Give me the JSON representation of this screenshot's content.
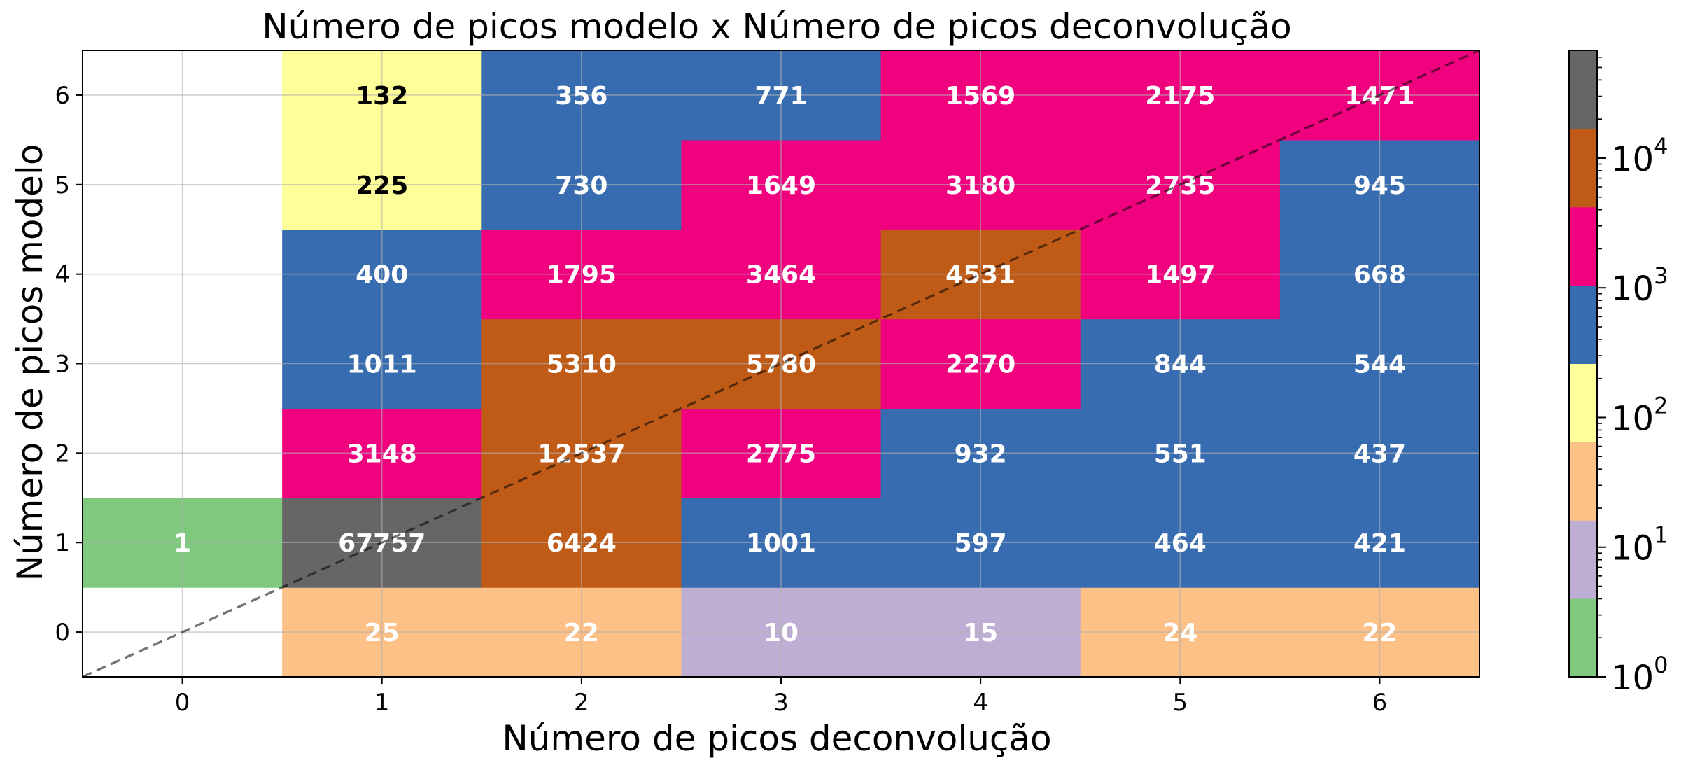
{
  "chart_data": {
    "type": "heatmap",
    "title": "Número de picos modelo x Número de picos deconvolução",
    "xlabel": "Número de picos deconvolução",
    "ylabel": "Número de picos modelo",
    "x": [
      "0",
      "1",
      "2",
      "3",
      "4",
      "5",
      "6"
    ],
    "y": [
      "0",
      "1",
      "2",
      "3",
      "4",
      "5",
      "6"
    ],
    "values": [
      [
        null,
        25,
        22,
        10,
        15,
        24,
        22
      ],
      [
        1,
        67757,
        6424,
        1001,
        597,
        464,
        421
      ],
      [
        null,
        3148,
        12537,
        2775,
        932,
        551,
        437
      ],
      [
        null,
        1011,
        5310,
        5780,
        2270,
        844,
        544
      ],
      [
        null,
        400,
        1795,
        3464,
        4531,
        1497,
        668
      ],
      [
        null,
        225,
        730,
        1649,
        3180,
        2735,
        945
      ],
      [
        null,
        132,
        356,
        771,
        1569,
        2175,
        1471
      ]
    ],
    "xlim": [
      -0.5,
      6.5
    ],
    "ylim": [
      -0.5,
      6.5
    ],
    "grid": true,
    "diagonal_line": "dashed",
    "colorbar": {
      "scale": "log",
      "range": [
        1,
        67757
      ],
      "ticks": [
        {
          "base": "10",
          "exp": "0"
        },
        {
          "base": "10",
          "exp": "1"
        },
        {
          "base": "10",
          "exp": "2"
        },
        {
          "base": "10",
          "exp": "3"
        },
        {
          "base": "10",
          "exp": "4"
        }
      ],
      "colormap": [
        "#7fc97f",
        "#beaed4",
        "#fdc086",
        "#ffff99",
        "#386cb0",
        "#f0027f",
        "#bf5b17",
        "#666666"
      ]
    }
  }
}
